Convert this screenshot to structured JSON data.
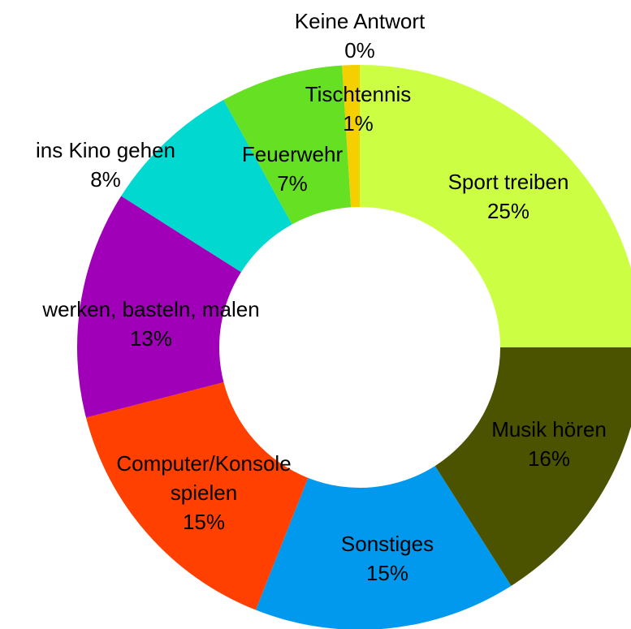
{
  "chart_data": {
    "type": "donut",
    "categories": [
      "Sport treiben",
      "Musik hören",
      "Sonstiges",
      "Computer/Konsole spielen",
      "werken, basteln, malen",
      "ins Kino gehen",
      "Feuerwehr",
      "Tischtennis",
      "Keine Antwort"
    ],
    "values": [
      25,
      16,
      15,
      15,
      13,
      8,
      7,
      1,
      0
    ],
    "value_labels": [
      "25%",
      "16%",
      "15%",
      "15%",
      "13%",
      "8%",
      "7%",
      "1%",
      "0%"
    ],
    "colors": [
      "#ccff44",
      "#4b5200",
      "#0099ee",
      "#ff4000",
      "#a000b8",
      "#00d8d0",
      "#66e022",
      "#f5d000",
      "#f5d000"
    ]
  }
}
